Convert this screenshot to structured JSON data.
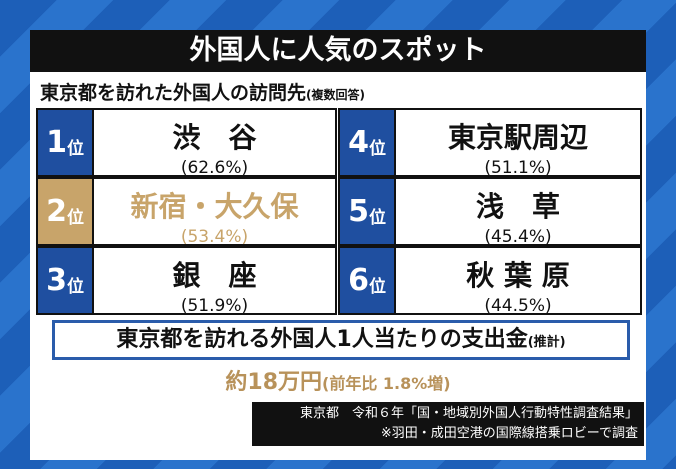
{
  "header": {
    "title": "外国人に人気のスポット"
  },
  "subtitle": {
    "text": "東京都を訪れた外国人の訪問先",
    "note": "(複数回答)"
  },
  "table": {
    "rows": [
      {
        "number": "1",
        "suffix": "位",
        "place": "渋　谷",
        "share": "(62.6%)"
      },
      {
        "number": "2",
        "suffix": "位",
        "place": "新宿・大久保",
        "share": "(53.4%)"
      },
      {
        "number": "3",
        "suffix": "位",
        "place": "銀　座",
        "share": "(51.9%)"
      },
      {
        "number": "4",
        "suffix": "位",
        "place": "東京駅周辺",
        "share": "(51.1%)"
      },
      {
        "number": "5",
        "suffix": "位",
        "place": "浅　草",
        "share": "(45.4%)"
      },
      {
        "number": "6",
        "suffix": "位",
        "place": "秋 葉 原",
        "share": "(44.5%)"
      }
    ]
  },
  "spending": {
    "label": "東京都を訪れる外国人1人当たりの支出金",
    "note": "(推計)",
    "amount": "約18万円",
    "change": "(前年比 1.8%増)"
  },
  "source": {
    "lines": [
      "東京都　令和６年「国・地域別外国人行動特性調査結果」",
      "※羽田・成田空港の国際線搭乗ロビーで調査"
    ]
  }
}
